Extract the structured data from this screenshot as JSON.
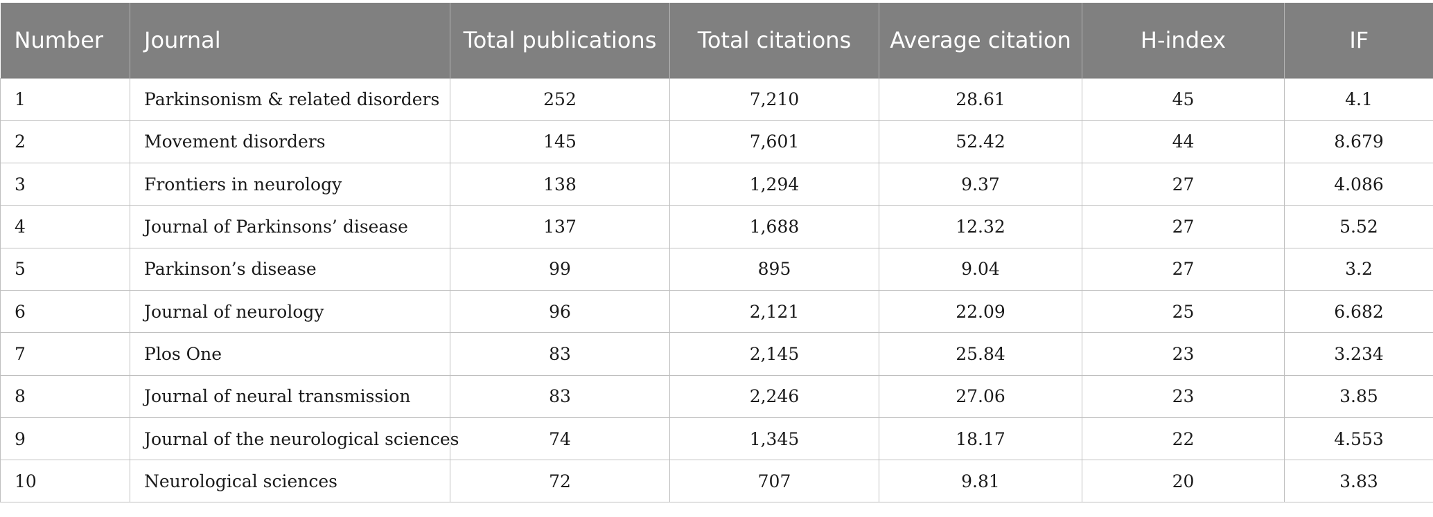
{
  "table": {
    "headers": [
      "Number",
      "Journal",
      "Total publications",
      "Total citations",
      "Average citation",
      "H-index",
      "IF"
    ],
    "rows": [
      [
        "1",
        "Parkinsonism & related disorders",
        "252",
        "7,210",
        "28.61",
        "45",
        "4.1"
      ],
      [
        "2",
        "Movement disorders",
        "145",
        "7,601",
        "52.42",
        "44",
        "8.679"
      ],
      [
        "3",
        "Frontiers in neurology",
        "138",
        "1,294",
        "9.37",
        "27",
        "4.086"
      ],
      [
        "4",
        "Journal of Parkinsons’ disease",
        "137",
        "1,688",
        "12.32",
        "27",
        "5.52"
      ],
      [
        "5",
        "Parkinson’s disease",
        "99",
        "895",
        "9.04",
        "27",
        "3.2"
      ],
      [
        "6",
        "Journal of neurology",
        "96",
        "2,121",
        "22.09",
        "25",
        "6.682"
      ],
      [
        "7",
        "Plos One",
        "83",
        "2,145",
        "25.84",
        "23",
        "3.234"
      ],
      [
        "8",
        "Journal of neural transmission",
        "83",
        "2,246",
        "27.06",
        "23",
        "3.85"
      ],
      [
        "9",
        "Journal of the neurological sciences",
        "74",
        "1,345",
        "18.17",
        "22",
        "4.553"
      ],
      [
        "10",
        "Neurological sciences",
        "72",
        "707",
        "9.81",
        "20",
        "3.83"
      ]
    ],
    "colors": {
      "header_background": "#808080",
      "header_text": "#ffffff",
      "border": "#bfbfbf"
    }
  }
}
